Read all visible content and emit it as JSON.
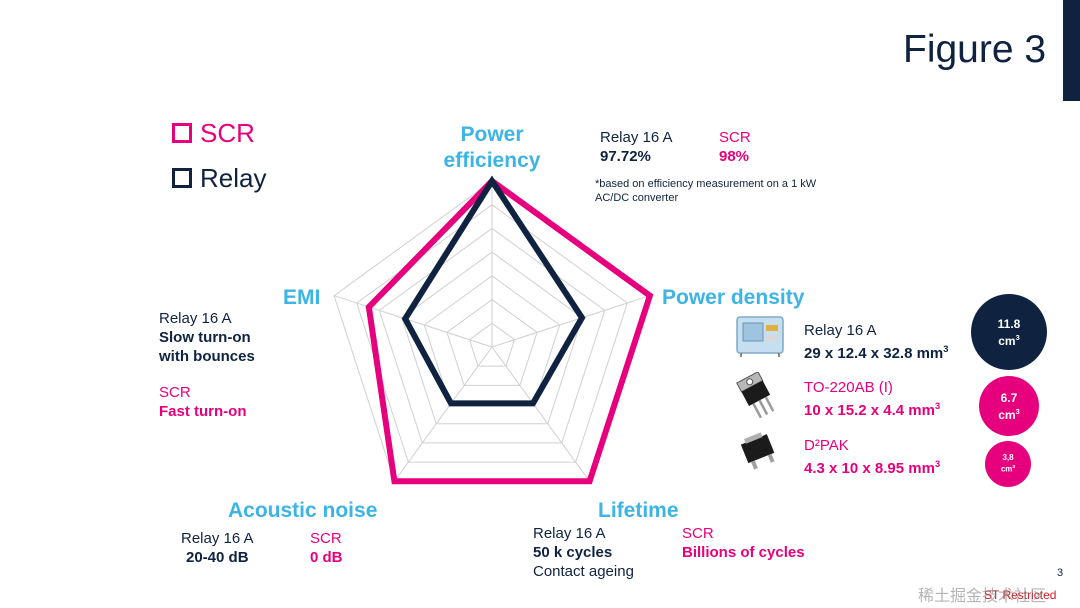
{
  "title": "Figure 3",
  "legend": {
    "scr": "SCR",
    "relay": "Relay"
  },
  "colors": {
    "scr": "#e6007e",
    "relay": "#0f2340",
    "axis": "#3cb4e5",
    "grid": "#d0d0d0"
  },
  "chart_data": {
    "type": "radar",
    "axes": [
      "Power efficiency",
      "Power density",
      "Lifetime",
      "Acoustic noise",
      "EMI"
    ],
    "rings": 7,
    "series": [
      {
        "name": "SCR",
        "values": [
          1.0,
          1.0,
          1.0,
          1.0,
          0.78
        ]
      },
      {
        "name": "Relay",
        "values": [
          1.0,
          0.57,
          0.42,
          0.42,
          0.55
        ]
      }
    ]
  },
  "power_efficiency": {
    "axis_line1": "Power",
    "axis_line2": "efficiency",
    "relay_label": "Relay 16 A",
    "relay_value": "97.72%",
    "scr_label": "SCR",
    "scr_value": "98%",
    "note_line1": "*based on efficiency measurement on a 1 kW",
    "note_line2": "AC/DC converter"
  },
  "power_density": {
    "axis": "Power density",
    "items": [
      {
        "label": "Relay 16 A",
        "dims": "29 x 12.4 x 32.8 mm",
        "unit_exp": "3",
        "volume": "11.8",
        "vol_unit": "cm",
        "icon": "relay-component-icon"
      },
      {
        "label": "TO-220AB (I)",
        "dims": "10 x 15.2 x 4.4 mm",
        "unit_exp": "3",
        "volume": "6.7",
        "vol_unit": "cm",
        "icon": "to220-package-icon"
      },
      {
        "label": "D²PAK",
        "dims": "4.3 x 10 x 8.95 mm",
        "unit_exp": "3",
        "volume": "3,8",
        "vol_unit": "cm",
        "icon": "d2pak-package-icon"
      }
    ]
  },
  "emi": {
    "axis": "EMI",
    "relay_label": "Relay 16 A",
    "relay_line1": "Slow turn-on",
    "relay_line2": "with bounces",
    "scr_label": "SCR",
    "scr_value": "Fast turn-on"
  },
  "acoustic": {
    "axis": "Acoustic noise",
    "relay_label": "Relay 16 A",
    "relay_value": "20-40 dB",
    "scr_label": "SCR",
    "scr_value": "0 dB"
  },
  "lifetime": {
    "axis": "Lifetime",
    "relay_label": "Relay 16 A",
    "relay_value": "50 k cycles",
    "relay_note": "Contact ageing",
    "scr_label": "SCR",
    "scr_value": "Billions of cycles"
  },
  "footer": {
    "page_number": "3",
    "classification": "ST Restricted",
    "watermark": "稀土掘金技术社区"
  }
}
